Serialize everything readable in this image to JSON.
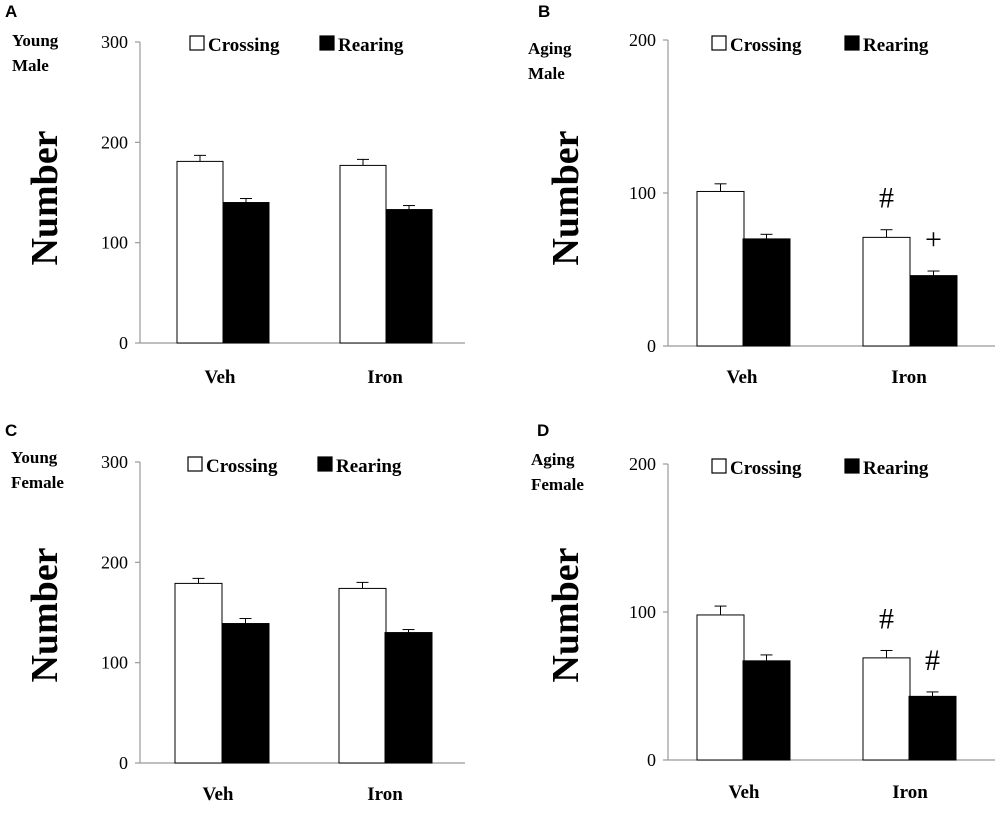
{
  "figure": {
    "legend_labels": [
      "Crossing",
      "Rearing"
    ],
    "colors": {
      "crossing": "#ffffff",
      "rearing": "#000000",
      "axis": "#999999",
      "ink": "#000000"
    }
  },
  "chart_data": [
    {
      "type": "bar",
      "panel": "A",
      "group_label": [
        "Young",
        "Male"
      ],
      "ylabel": "Number",
      "categories": [
        "Veh",
        "Iron"
      ],
      "ylim": [
        0,
        300
      ],
      "yticks": [
        0,
        100,
        200,
        300
      ],
      "grid": false,
      "legend": "top",
      "series": [
        {
          "name": "Crossing",
          "values": [
            181,
            177
          ],
          "errors": [
            6,
            6
          ]
        },
        {
          "name": "Rearing",
          "values": [
            140,
            133
          ],
          "errors": [
            4,
            4
          ]
        }
      ],
      "annotations": []
    },
    {
      "type": "bar",
      "panel": "B",
      "group_label": [
        "Aging",
        "Male"
      ],
      "ylabel": "Number",
      "categories": [
        "Veh",
        "Iron"
      ],
      "ylim": [
        0,
        200
      ],
      "yticks": [
        0,
        100,
        200
      ],
      "grid": false,
      "legend": "top",
      "series": [
        {
          "name": "Crossing",
          "values": [
            101,
            71
          ],
          "errors": [
            5,
            5
          ]
        },
        {
          "name": "Rearing",
          "values": [
            70,
            46
          ],
          "errors": [
            3,
            3
          ]
        }
      ],
      "annotations": [
        {
          "text": "#",
          "category": 1,
          "series": 0
        },
        {
          "text": "+",
          "category": 1,
          "series": 1
        }
      ]
    },
    {
      "type": "bar",
      "panel": "C",
      "group_label": [
        "Young",
        "Female"
      ],
      "ylabel": "Number",
      "categories": [
        "Veh",
        "Iron"
      ],
      "ylim": [
        0,
        300
      ],
      "yticks": [
        0,
        100,
        200,
        300
      ],
      "grid": false,
      "legend": "top",
      "series": [
        {
          "name": "Crossing",
          "values": [
            179,
            174
          ],
          "errors": [
            5,
            6
          ]
        },
        {
          "name": "Rearing",
          "values": [
            139,
            130
          ],
          "errors": [
            5,
            3
          ]
        }
      ],
      "annotations": []
    },
    {
      "type": "bar",
      "panel": "D",
      "group_label": [
        "Aging",
        "Female"
      ],
      "ylabel": "Number",
      "categories": [
        "Veh",
        "Iron"
      ],
      "ylim": [
        0,
        200
      ],
      "yticks": [
        0,
        100,
        200
      ],
      "grid": false,
      "legend": "top",
      "series": [
        {
          "name": "Crossing",
          "values": [
            98,
            69
          ],
          "errors": [
            6,
            5
          ]
        },
        {
          "name": "Rearing",
          "values": [
            67,
            43
          ],
          "errors": [
            4,
            3
          ]
        }
      ],
      "annotations": [
        {
          "text": "#",
          "category": 1,
          "series": 0
        },
        {
          "text": "#",
          "category": 1,
          "series": 1
        }
      ]
    }
  ]
}
